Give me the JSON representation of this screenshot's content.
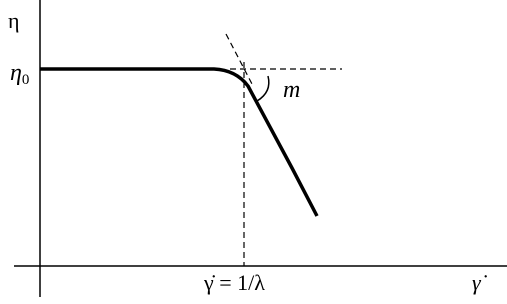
{
  "labels": {
    "y_axis": "η",
    "eta0": {
      "symbol": "η",
      "subscript": "0"
    },
    "slope": "m",
    "x_marker": "γ̇ = 1/λ",
    "x_axis": "γ̇"
  }
}
